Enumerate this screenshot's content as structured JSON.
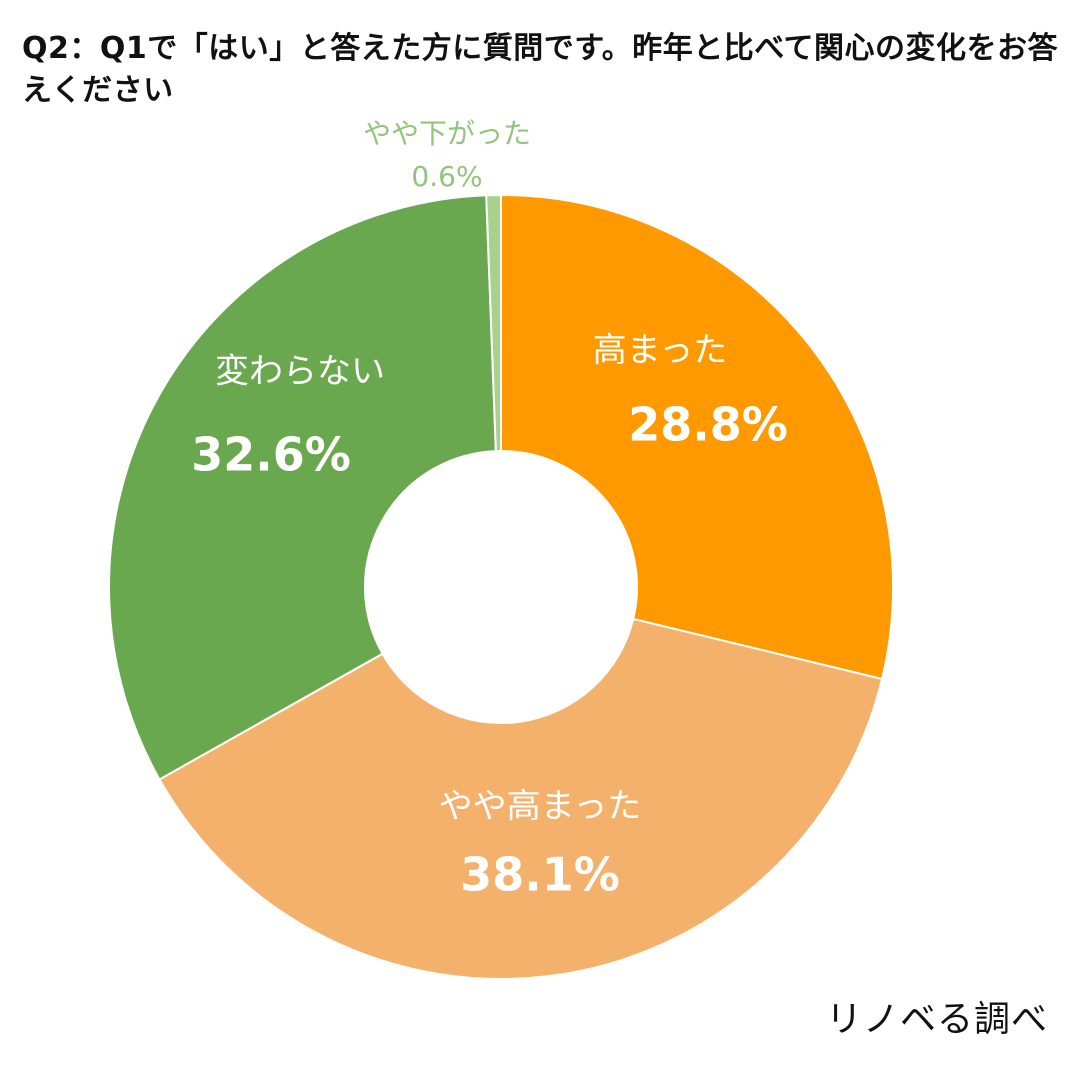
{
  "chart_data": {
    "type": "pie",
    "title": "Q2：Q1で「はい」と答えた方に質問です。昨年と比べて関心の変化をお答えください",
    "categories": [
      "高まった",
      "やや高まった",
      "変わらない",
      "やや下がった"
    ],
    "values": [
      28.8,
      38.1,
      32.6,
      0.6
    ],
    "value_labels": [
      "28.8%",
      "38.1%",
      "32.6%",
      "0.6%"
    ],
    "colors": [
      "#ff9900",
      "#f4b16b",
      "#6aa84f",
      "#a9d18e"
    ],
    "label_colors": [
      "#ffffff",
      "#ffffff",
      "#ffffff",
      "#93c47d"
    ],
    "hole": true,
    "legend": "none"
  },
  "source": "リノベる調べ"
}
